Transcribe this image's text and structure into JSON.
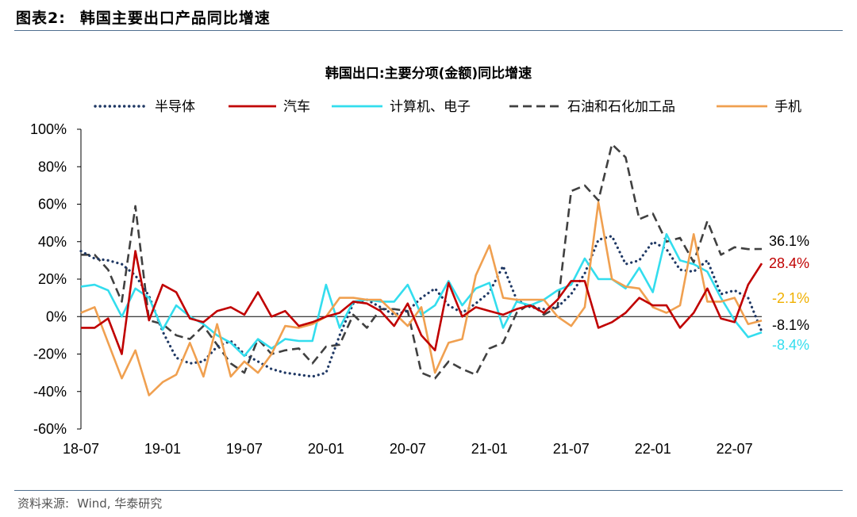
{
  "header": {
    "figure_number": "图表2:",
    "figure_title": "韩国主要出口产品同比增速"
  },
  "source": {
    "label": "资料来源:",
    "text": "Wind, 华泰研究"
  },
  "colors": {
    "semiconductor": "#1f3864",
    "auto": "#c00000",
    "computer": "#33ddee",
    "petro": "#404040",
    "phone": "#f0a050",
    "end_phone": "#f0b000",
    "rule": "#4f6f8f"
  },
  "chart_data": {
    "type": "line",
    "title": "韩国出口:主要分项(金额)同比增速",
    "xlabel": "",
    "ylabel": "",
    "ylim": [
      -60,
      100
    ],
    "yticks": [
      -60,
      -40,
      -20,
      0,
      20,
      40,
      60,
      80,
      100
    ],
    "ytick_labels": [
      "-60%",
      "-40%",
      "-20%",
      "0%",
      "20%",
      "40%",
      "60%",
      "80%",
      "100%"
    ],
    "xticks": [
      {
        "label": "18-07",
        "index": 0
      },
      {
        "label": "19-01",
        "index": 6
      },
      {
        "label": "19-07",
        "index": 12
      },
      {
        "label": "20-01",
        "index": 18
      },
      {
        "label": "20-07",
        "index": 24
      },
      {
        "label": "21-01",
        "index": 30
      },
      {
        "label": "21-07",
        "index": 36
      },
      {
        "label": "22-01",
        "index": 42
      },
      {
        "label": "22-07",
        "index": 48
      }
    ],
    "x_start": "2018-07",
    "x_end": "2022-08",
    "legend_position": "top",
    "series": [
      {
        "key": "semiconductor",
        "name": "半导体",
        "style": "dotted",
        "end_label": "-8.1%",
        "values": [
          35,
          31,
          30,
          28,
          22,
          11,
          -8,
          -22,
          -25,
          -24,
          -16,
          -13,
          -20,
          -24,
          -28,
          -30,
          -31,
          -32,
          -30,
          -10,
          7,
          9,
          5,
          1,
          3,
          10,
          15,
          6,
          2,
          7,
          13,
          27,
          9,
          5,
          4,
          5,
          12,
          23,
          41,
          43,
          28,
          30,
          40,
          36,
          25,
          24,
          30,
          12,
          14,
          10,
          -8.1
        ]
      },
      {
        "key": "auto",
        "name": "汽车",
        "style": "solid",
        "end_label": "28.4%",
        "values": [
          -6,
          -6,
          -1,
          -20,
          35,
          -2,
          17,
          13,
          -1,
          -3,
          3,
          5,
          1,
          13,
          0,
          3,
          -5,
          -3,
          0,
          2,
          8,
          7,
          3,
          -5,
          7,
          -10,
          -18,
          18,
          0,
          5,
          3,
          1,
          4,
          6,
          2,
          9,
          19,
          19,
          -6,
          -3,
          2,
          10,
          6,
          6,
          -6,
          2,
          15,
          -1,
          -3,
          17,
          28.4
        ]
      },
      {
        "key": "computer",
        "name": "计算机、电子",
        "style": "solid",
        "end_label": "-8.4%",
        "values": [
          16,
          17,
          14,
          0,
          15,
          10,
          -7,
          6,
          0,
          -4,
          -10,
          -14,
          -21,
          -12,
          -17,
          -12,
          -13,
          -13,
          17,
          -6,
          8,
          9,
          8,
          8,
          17,
          1,
          6,
          19,
          6,
          15,
          18,
          -6,
          8,
          6,
          9,
          14,
          17,
          31,
          20,
          20,
          15,
          26,
          13,
          44,
          30,
          28,
          24,
          10,
          -2,
          -11,
          -8.4
        ]
      },
      {
        "key": "petro",
        "name": "石油和石化加工品",
        "style": "dashed",
        "end_label": "36.1%",
        "values": [
          33,
          33,
          25,
          8,
          59,
          -2,
          -4,
          -10,
          -12,
          -5,
          -15,
          -25,
          -30,
          -12,
          -20,
          -18,
          -17,
          -25,
          -16,
          -15,
          1,
          -6,
          4,
          4,
          3,
          -30,
          -33,
          -24,
          -28,
          -31,
          -17,
          -14,
          2,
          7,
          1,
          5,
          67,
          70,
          62,
          92,
          85,
          52,
          55,
          40,
          42,
          29,
          51,
          33,
          37,
          36,
          36.1
        ]
      },
      {
        "key": "phone",
        "name": "手机",
        "style": "solid",
        "end_label": "-2.1%",
        "values": [
          2,
          5,
          -14,
          -33,
          -18,
          -42,
          -35,
          -31,
          -14,
          -32,
          -4,
          -32,
          -24,
          -30,
          -20,
          -5,
          -6,
          -4,
          0,
          10,
          10,
          9,
          9,
          2,
          -5,
          5,
          -30,
          -14,
          -12,
          22,
          38,
          10,
          9,
          9,
          9,
          0,
          -5,
          5,
          61,
          20,
          16,
          15,
          5,
          2,
          6,
          44,
          8,
          8,
          10,
          -4,
          -2.1
        ]
      }
    ],
    "end_labels_order": [
      "36.1%",
      "28.4%",
      "-2.1%",
      "-8.1%",
      "-8.4%"
    ]
  }
}
